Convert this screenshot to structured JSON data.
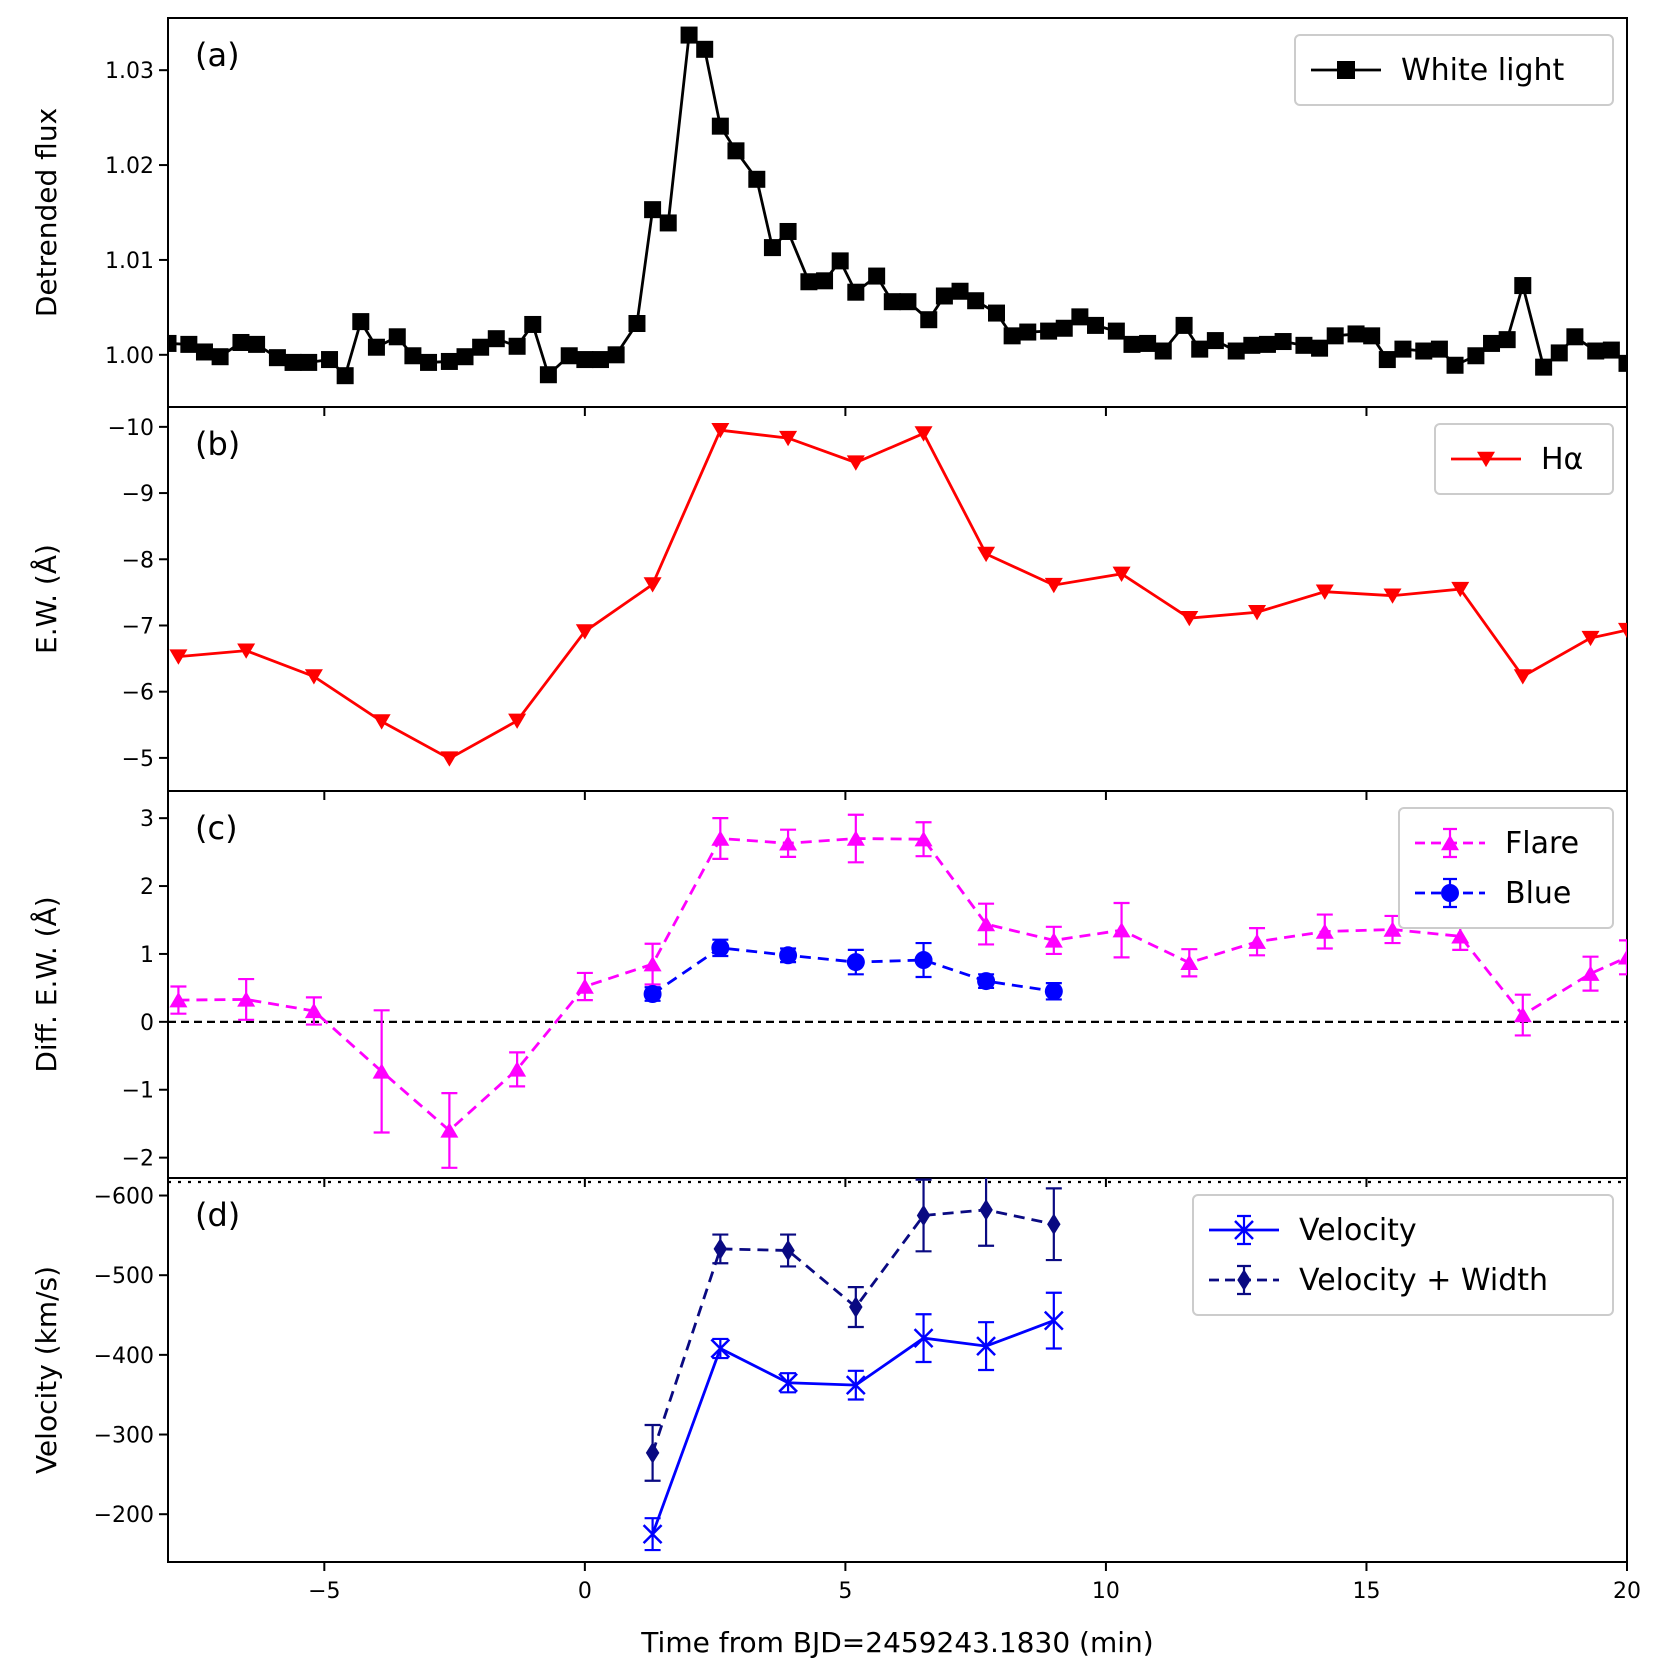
{
  "chart_data": {
    "type": "line",
    "xlabel": "Time from BJD=2459243.1830 (min)",
    "xlim": [
      -8,
      20
    ],
    "xticks": [
      -5,
      0,
      5,
      10,
      15,
      20
    ],
    "xtick_labels": [
      "−5",
      "0",
      "5",
      "10",
      "15",
      "20"
    ],
    "panels": [
      {
        "id": "a",
        "label": "(a)",
        "ylabel": "Detrended flux",
        "ylim": [
          0.9945,
          1.0355
        ],
        "inverted": false,
        "yticks": [
          1.0,
          1.01,
          1.02,
          1.03
        ],
        "ytick_labels": [
          "1.00",
          "1.01",
          "1.02",
          "1.03"
        ],
        "legend_position": "top-right",
        "series": [
          {
            "name": "White light",
            "color": "#000000",
            "marker": "square",
            "linestyle": "solid",
            "x": [
              -8.0,
              -7.6,
              -7.3,
              -7.0,
              -6.6,
              -6.3,
              -5.9,
              -5.6,
              -5.3,
              -4.9,
              -4.6,
              -4.3,
              -4.0,
              -3.6,
              -3.3,
              -3.0,
              -2.6,
              -2.3,
              -2.0,
              -1.7,
              -1.3,
              -1.0,
              -0.7,
              -0.3,
              0.0,
              0.3,
              0.6,
              1.0,
              1.3,
              1.6,
              2.0,
              2.3,
              2.6,
              2.9,
              3.3,
              3.6,
              3.9,
              4.3,
              4.6,
              4.9,
              5.2,
              5.6,
              5.9,
              6.2,
              6.6,
              6.9,
              7.2,
              7.5,
              7.9,
              8.2,
              8.5,
              8.9,
              9.2,
              9.5,
              9.8,
              10.2,
              10.5,
              10.8,
              11.1,
              11.5,
              11.8,
              12.1,
              12.5,
              12.8,
              13.1,
              13.4,
              13.8,
              14.1,
              14.4,
              14.8,
              15.1,
              15.4,
              15.7,
              16.1,
              16.4,
              16.7,
              17.1,
              17.4,
              17.7,
              18.0,
              18.4,
              18.7,
              19.0,
              19.4,
              19.7,
              20.0
            ],
            "y": [
              1.0012,
              1.0011,
              1.0003,
              0.9998,
              1.0013,
              1.0011,
              0.9997,
              0.9992,
              0.9992,
              0.9995,
              0.9978,
              1.0035,
              1.0008,
              1.0019,
              0.9999,
              0.9992,
              0.9993,
              0.9998,
              1.0008,
              1.0017,
              1.0009,
              1.0032,
              0.9979,
              0.9999,
              0.9995,
              0.9995,
              1.0,
              1.0033,
              1.0153,
              1.0139,
              1.0337,
              1.0322,
              1.0241,
              1.0215,
              1.0185,
              1.0113,
              1.013,
              1.0077,
              1.0078,
              1.0099,
              1.0066,
              1.0083,
              1.0056,
              1.0056,
              1.0037,
              1.0062,
              1.0067,
              1.0057,
              1.0044,
              1.002,
              1.0024,
              1.0025,
              1.0028,
              1.004,
              1.0031,
              1.0025,
              1.0011,
              1.0012,
              1.0004,
              1.0031,
              1.0006,
              1.0015,
              1.0004,
              1.001,
              1.0011,
              1.0014,
              1.001,
              1.0007,
              1.002,
              1.0022,
              1.002,
              0.9995,
              1.0006,
              1.0004,
              1.0006,
              0.9989,
              0.9999,
              1.0012,
              1.0016,
              1.0073,
              0.9987,
              1.0002,
              1.0019,
              1.0004,
              1.0005,
              0.9991
            ]
          }
        ]
      },
      {
        "id": "b",
        "label": "(b)",
        "ylabel": "E.W. (Å)",
        "ylim": [
          -4.5,
          -10.3
        ],
        "inverted": true,
        "yticks": [
          -5,
          -6,
          -7,
          -8,
          -9,
          -10
        ],
        "ytick_labels": [
          "−5",
          "−6",
          "−7",
          "−8",
          "−9",
          "−10"
        ],
        "legend_position": "top-right",
        "series": [
          {
            "name": "Hα",
            "color": "#ff0000",
            "marker": "triangle-down",
            "linestyle": "solid",
            "x": [
              -7.8,
              -6.5,
              -5.2,
              -3.9,
              -2.6,
              -1.3,
              0.0,
              1.3,
              2.6,
              3.9,
              5.2,
              6.5,
              7.7,
              9.0,
              10.3,
              11.6,
              12.9,
              14.2,
              15.5,
              16.8,
              18.0,
              19.3,
              20.0
            ],
            "y": [
              -6.53,
              -6.62,
              -6.23,
              -5.55,
              -4.99,
              -5.56,
              -6.91,
              -7.62,
              -9.95,
              -9.83,
              -9.46,
              -9.9,
              -8.08,
              -7.61,
              -7.78,
              -7.11,
              -7.2,
              -7.51,
              -7.45,
              -7.55,
              -6.23,
              -6.81,
              -6.93
            ]
          }
        ]
      },
      {
        "id": "c",
        "label": "(c)",
        "ylabel": "Diff. E.W. (Å)",
        "ylim": [
          -2.3,
          3.4
        ],
        "inverted": false,
        "yticks": [
          -2,
          -1,
          0,
          1,
          2,
          3
        ],
        "ytick_labels": [
          "−2",
          "−1",
          "0",
          "1",
          "2",
          "3"
        ],
        "hline": 0,
        "legend_position": "top-right",
        "series": [
          {
            "name": "Flare",
            "color": "#ff00ff",
            "marker": "triangle-up",
            "linestyle": "dashed",
            "x": [
              -7.8,
              -6.5,
              -5.2,
              -3.9,
              -2.6,
              -1.3,
              0.0,
              1.3,
              2.6,
              3.9,
              5.2,
              6.5,
              7.7,
              9.0,
              10.3,
              11.6,
              12.9,
              14.2,
              15.5,
              16.8,
              18.0,
              19.3,
              20.0
            ],
            "y": [
              0.32,
              0.33,
              0.16,
              -0.73,
              -1.6,
              -0.7,
              0.52,
              0.85,
              2.7,
              2.63,
              2.7,
              2.69,
              1.44,
              1.2,
              1.35,
              0.87,
              1.18,
              1.33,
              1.36,
              1.26,
              0.1,
              0.71,
              0.95
            ],
            "err": [
              0.2,
              0.3,
              0.2,
              0.9,
              0.55,
              0.25,
              0.2,
              0.3,
              0.3,
              0.2,
              0.35,
              0.25,
              0.3,
              0.2,
              0.4,
              0.2,
              0.2,
              0.25,
              0.2,
              0.2,
              0.3,
              0.25,
              0.25
            ]
          },
          {
            "name": "Blue",
            "color": "#0000ff",
            "marker": "circle",
            "linestyle": "dashed",
            "x": [
              1.3,
              2.6,
              3.9,
              5.2,
              6.5,
              7.7,
              9.0
            ],
            "y": [
              0.41,
              1.09,
              0.98,
              0.88,
              0.91,
              0.6,
              0.45
            ],
            "err": [
              0.1,
              0.12,
              0.1,
              0.18,
              0.25,
              0.1,
              0.12
            ]
          }
        ]
      },
      {
        "id": "d",
        "label": "(d)",
        "ylabel": "Velocity (km/s)",
        "ylim": [
          -140,
          -622
        ],
        "inverted": true,
        "yticks": [
          -200,
          -300,
          -400,
          -500,
          -600
        ],
        "ytick_labels": [
          "−200",
          "−300",
          "−400",
          "−500",
          "−600"
        ],
        "hline": -617,
        "legend_position": "top-right",
        "series": [
          {
            "name": "Velocity",
            "color": "#0000ff",
            "marker": "x",
            "linestyle": "solid",
            "x": [
              1.3,
              2.6,
              3.9,
              5.2,
              6.5,
              7.7,
              9.0
            ],
            "y": [
              -175,
              -408,
              -365,
              -362,
              -421,
              -411,
              -443
            ],
            "err": [
              20,
              12,
              12,
              18,
              30,
              30,
              35
            ]
          },
          {
            "name": "Velocity + Width",
            "color": "#0a0a82",
            "marker": "diamond",
            "linestyle": "dashed",
            "x": [
              1.3,
              2.6,
              3.9,
              5.2,
              6.5,
              7.7,
              9.0
            ],
            "y": [
              -277,
              -533,
              -531,
              -460,
              -575,
              -582,
              -564
            ],
            "err": [
              35,
              18,
              20,
              25,
              45,
              45,
              45
            ]
          }
        ]
      }
    ]
  }
}
